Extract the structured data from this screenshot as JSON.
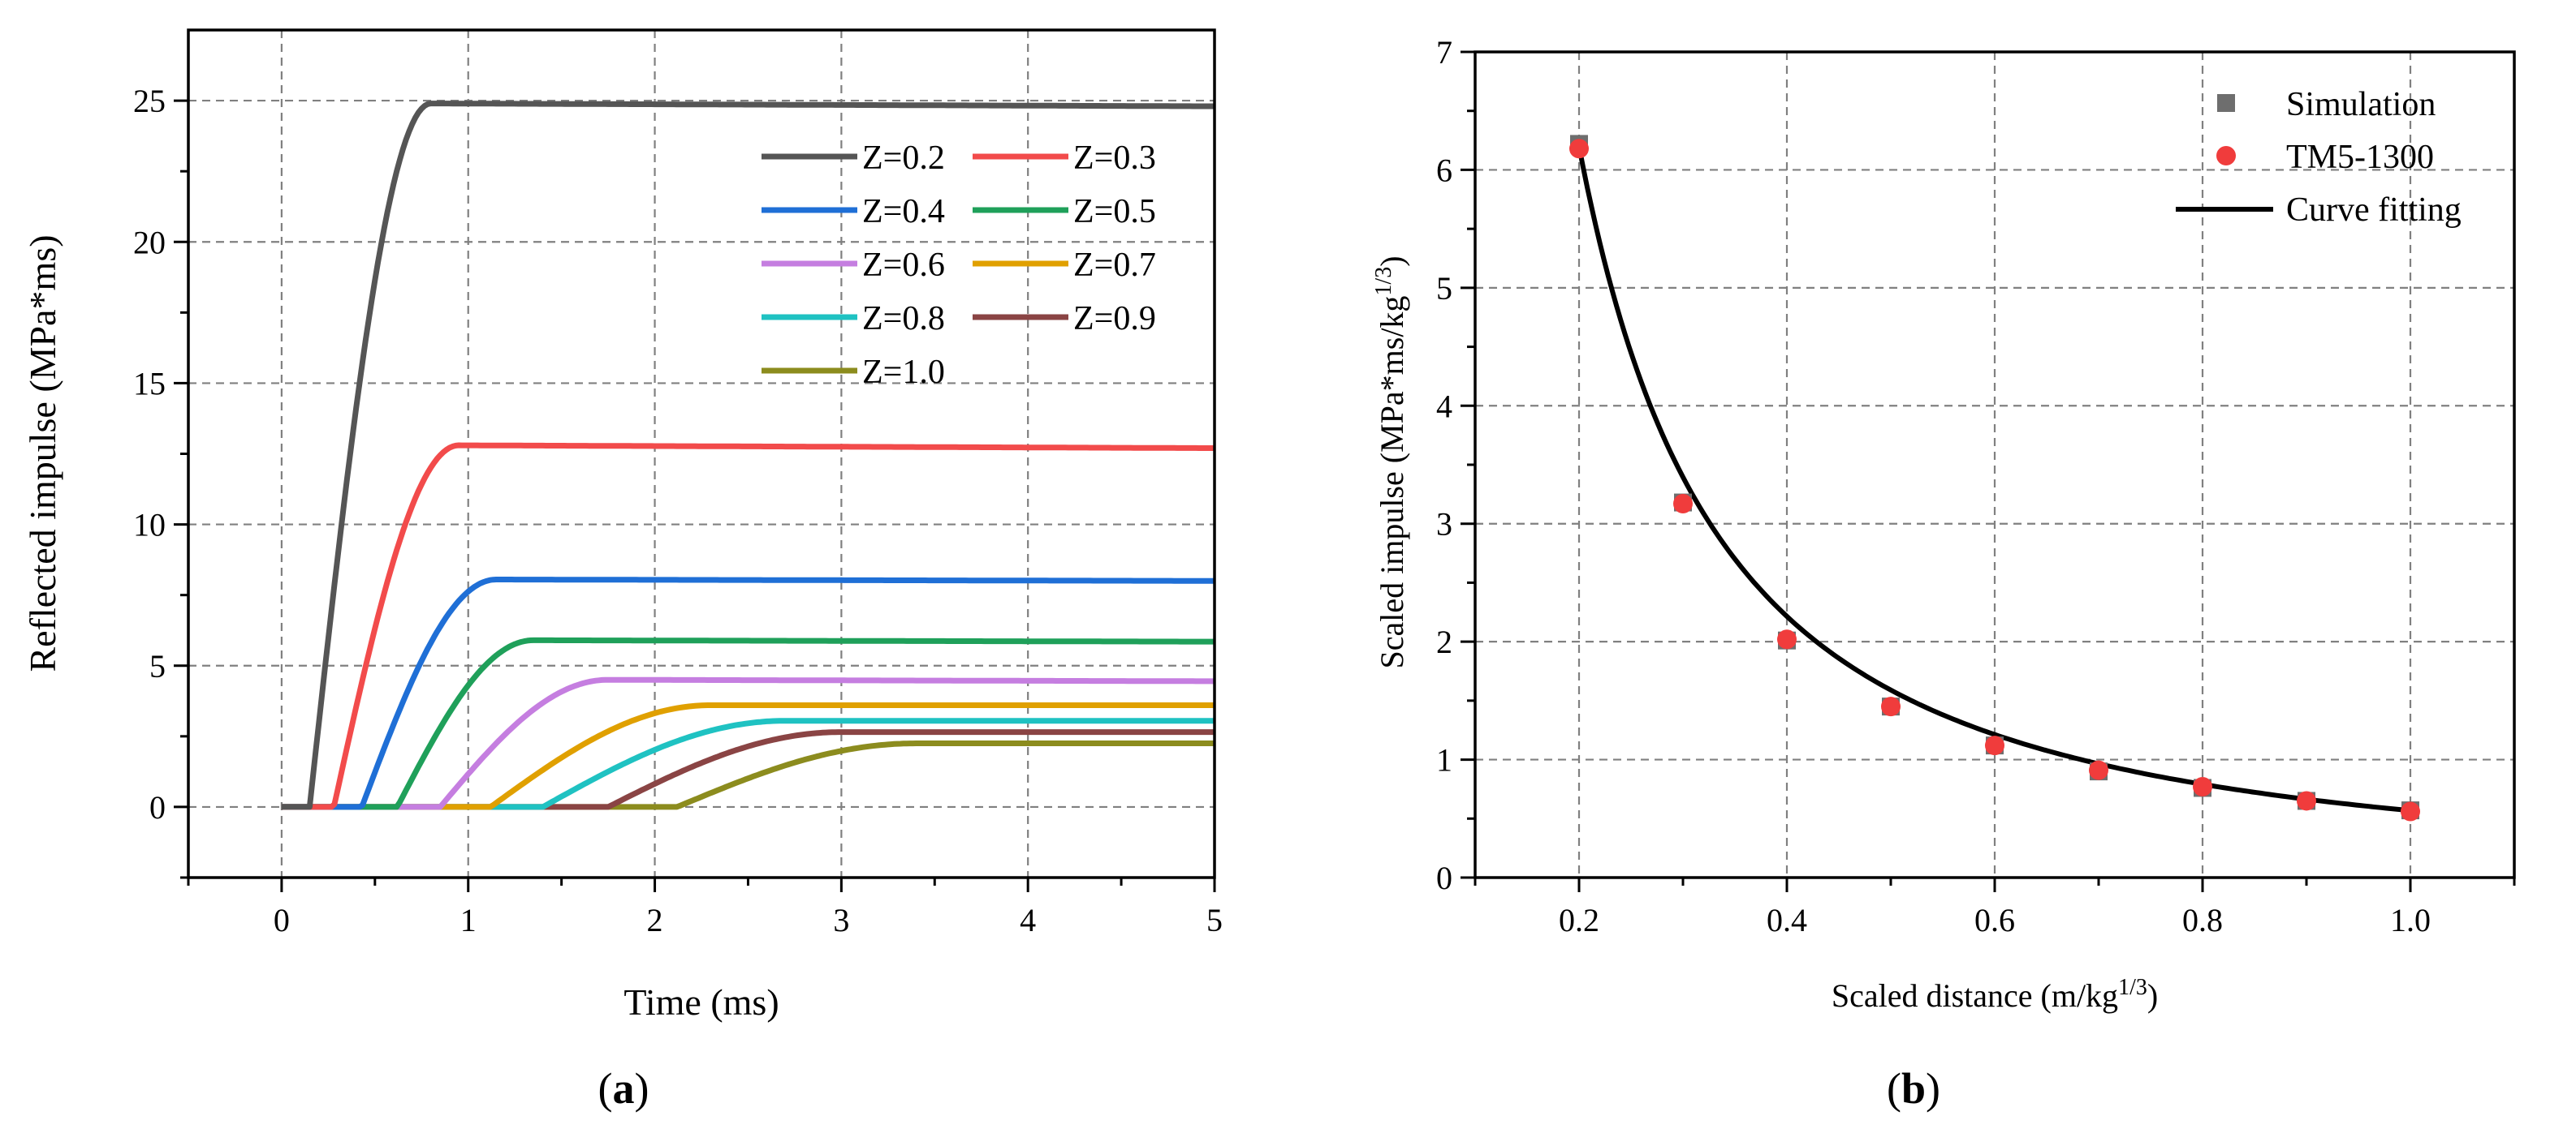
{
  "chart_data": [
    {
      "id": "a",
      "type": "line",
      "panel_label": "a",
      "xlabel": "Time (ms)",
      "ylabel": "Reflected impulse (MPa*ms)",
      "xlim": [
        -0.5,
        5
      ],
      "ylim": [
        -2.5,
        27.5
      ],
      "xticks": [
        0,
        1,
        2,
        3,
        4,
        5
      ],
      "yticks": [
        0,
        5,
        10,
        15,
        20,
        25
      ],
      "grid": true,
      "legend_position": "top-right",
      "series": [
        {
          "name": "Z=0.2",
          "color": "#555555",
          "start": 0.15,
          "t_peak": 0.8,
          "peak": 24.9,
          "final": 24.8
        },
        {
          "name": "Z=0.3",
          "color": "#F24B4B",
          "start": 0.28,
          "t_peak": 0.95,
          "peak": 12.8,
          "final": 12.7
        },
        {
          "name": "Z=0.4",
          "color": "#1F6FD6",
          "start": 0.43,
          "t_peak": 1.15,
          "peak": 8.05,
          "final": 8.0
        },
        {
          "name": "Z=0.5",
          "color": "#1FA05A",
          "start": 0.62,
          "t_peak": 1.35,
          "peak": 5.9,
          "final": 5.85
        },
        {
          "name": "Z=0.6",
          "color": "#C57EE0",
          "start": 0.85,
          "t_peak": 1.75,
          "peak": 4.5,
          "final": 4.45
        },
        {
          "name": "Z=0.7",
          "color": "#E0A000",
          "start": 1.12,
          "t_peak": 2.3,
          "peak": 3.6,
          "final": 3.6
        },
        {
          "name": "Z=0.8",
          "color": "#1FC2C2",
          "start": 1.4,
          "t_peak": 2.7,
          "peak": 3.05,
          "final": 3.05
        },
        {
          "name": "Z=0.9",
          "color": "#8A4444",
          "start": 1.75,
          "t_peak": 3.0,
          "peak": 2.65,
          "final": 2.65
        },
        {
          "name": "Z=1.0",
          "color": "#8C8C1E",
          "start": 2.12,
          "t_peak": 3.4,
          "peak": 2.25,
          "final": 2.25
        }
      ]
    },
    {
      "id": "b",
      "type": "scatter",
      "panel_label": "b",
      "xlabel": "Scaled distance (m/kg",
      "xlabel_sup": "1/3",
      "xlabel_end": ")",
      "ylabel": "Scaled impulse (MPa*ms/kg",
      "ylabel_sup": "1/3",
      "ylabel_end": ")",
      "xlim": [
        0.1,
        1.1
      ],
      "ylim": [
        0,
        7
      ],
      "xticks": [
        0.2,
        0.4,
        0.6,
        0.8,
        1.0
      ],
      "xtick_labels": [
        "0.2",
        "0.4",
        "0.6",
        "0.8",
        "1.0"
      ],
      "yticks": [
        0,
        1,
        2,
        3,
        4,
        5,
        6,
        7
      ],
      "grid": true,
      "legend_position": "top-right",
      "x": [
        0.2,
        0.3,
        0.4,
        0.5,
        0.6,
        0.7,
        0.8,
        0.9,
        1.0
      ],
      "series": [
        {
          "name": "Simulation",
          "marker": "square",
          "color": "#6E6E6E",
          "values": [
            6.22,
            3.18,
            2.01,
            1.45,
            1.12,
            0.9,
            0.76,
            0.65,
            0.57
          ]
        },
        {
          "name": "TM5-1300",
          "marker": "circle",
          "color": "#F03C3C",
          "values": [
            6.18,
            3.17,
            2.02,
            1.45,
            1.12,
            0.91,
            0.77,
            0.65,
            0.56
          ]
        },
        {
          "name": "Curve fitting",
          "marker": "line",
          "color": "#000000",
          "fit": {
            "form": "a*x^b",
            "a": 0.568,
            "b": -1.485
          }
        }
      ]
    }
  ]
}
